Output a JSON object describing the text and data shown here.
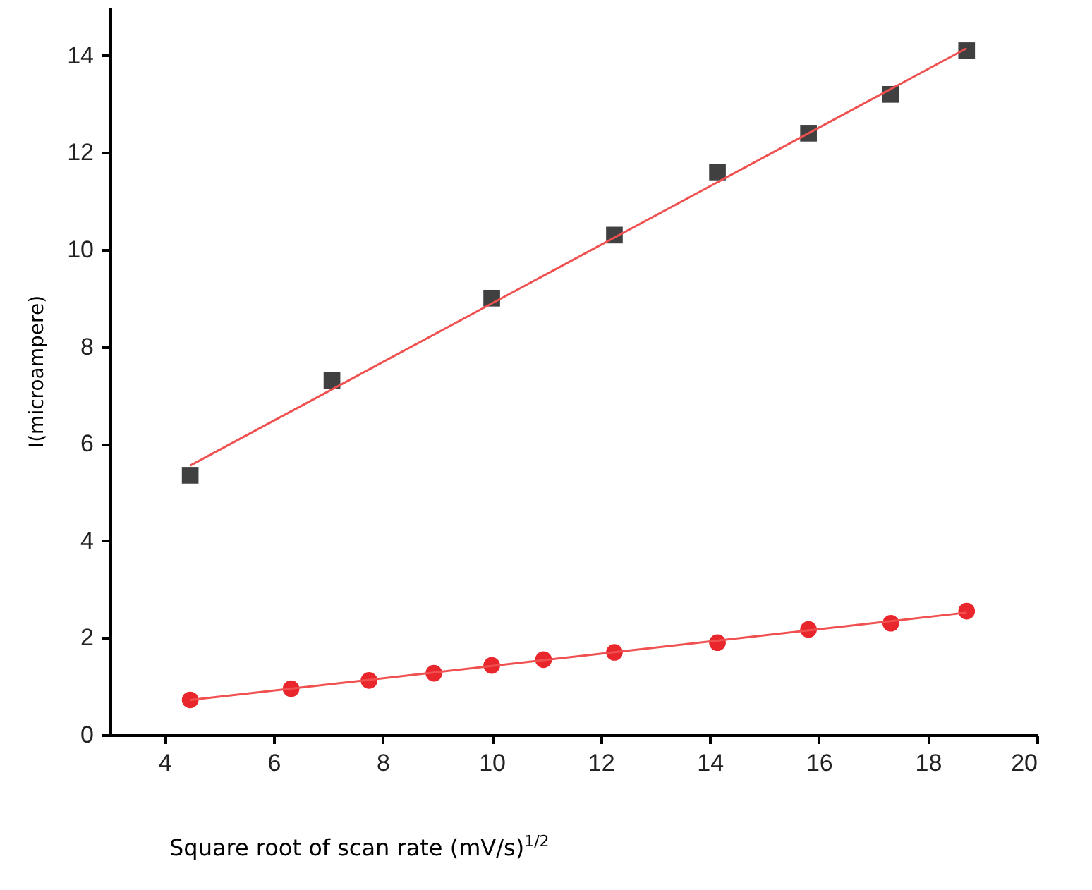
{
  "chart_data": {
    "type": "scatter",
    "xlabel": "Square root of scan rate (mV/s)$^{1/2}$",
    "ylabel": "I(microampere)",
    "xlim": [
      3,
      20
    ],
    "ylim": [
      0,
      15
    ],
    "xticks": [
      4,
      6,
      8,
      10,
      12,
      14,
      16,
      18,
      20
    ],
    "yticks": [
      0,
      2,
      4,
      6,
      8,
      10,
      12,
      14
    ],
    "grid": false,
    "series": [
      {
        "marker": "square",
        "color": "#404040",
        "x": [
          4.47,
          7.07,
          10,
          12.25,
          14.14,
          15.81,
          17.32,
          18.71
        ],
        "values": [
          5.35,
          7.3,
          9.0,
          10.3,
          11.6,
          12.4,
          13.2,
          14.1
        ]
      },
      {
        "type": "line",
        "marker": "none",
        "color": "#f05050",
        "x": [
          4.47,
          18.71
        ],
        "values": [
          5.55,
          14.15
        ]
      },
      {
        "marker": "circle",
        "color": "#e8262b",
        "x": [
          4.47,
          6.32,
          7.75,
          8.94,
          10,
          10.95,
          12.25,
          14.14,
          15.81,
          17.32,
          18.71
        ],
        "values": [
          0.72,
          0.95,
          1.12,
          1.27,
          1.43,
          1.55,
          1.7,
          1.9,
          2.17,
          2.3,
          2.55
        ]
      },
      {
        "type": "line",
        "marker": "none",
        "color": "#f05050",
        "x": [
          4.47,
          18.71
        ],
        "values": [
          0.72,
          2.52
        ]
      }
    ]
  }
}
